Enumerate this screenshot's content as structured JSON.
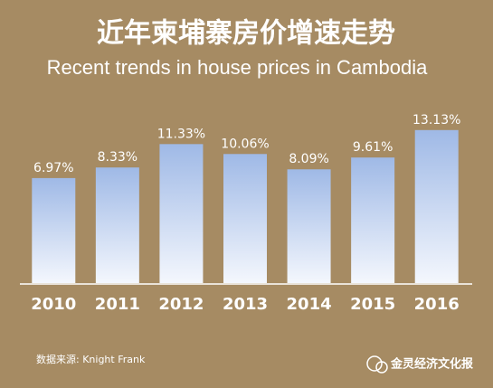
{
  "chart_data": {
    "type": "bar",
    "title": "近年柬埔寨房价增速走势",
    "subtitle": "Recent trends in house prices in Cambodia",
    "categories": [
      "2010",
      "2011",
      "2012",
      "2013",
      "2014",
      "2015",
      "2016"
    ],
    "values": [
      6.97,
      8.33,
      11.33,
      10.06,
      8.09,
      9.61,
      13.13
    ],
    "value_labels": [
      "6.97%",
      "8.33%",
      "11.33%",
      "10.06%",
      "8.09%",
      "9.61%",
      "13.13%"
    ],
    "color": "#9fb9e6",
    "ylim": [
      -6.5,
      14.5
    ],
    "source": "数据来源: Knight Frank",
    "watermark": "金灵经济文化报"
  }
}
